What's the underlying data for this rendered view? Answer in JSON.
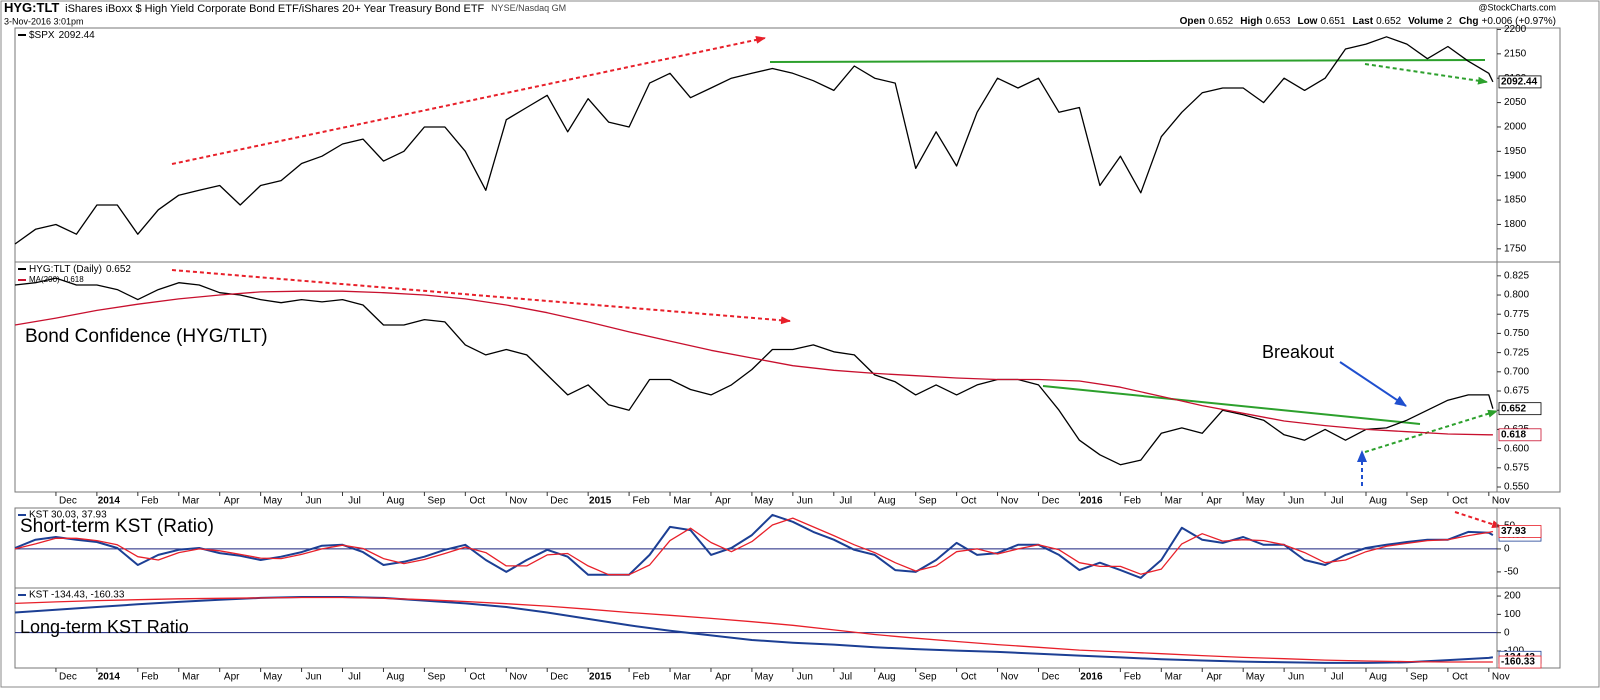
{
  "header": {
    "symbol": "HYG:TLT",
    "description": "iShares iBoxx $ High Yield Corporate Bond ETF/iShares 20+ Year Treasury Bond ETF",
    "exchange": "NYSE/Nasdaq GM",
    "date": "3-Nov-2016 3:01pm",
    "watermark": "@StockCharts.com",
    "stats": [
      {
        "label": "Open",
        "value": "0.652"
      },
      {
        "label": "High",
        "value": "0.653"
      },
      {
        "label": "Low",
        "value": "0.651"
      },
      {
        "label": "Last",
        "value": "0.652"
      },
      {
        "label": "Volume",
        "value": "2"
      },
      {
        "label": "Chg",
        "value": "+0.006 (+0.97%)"
      }
    ]
  },
  "chart_data": [
    {
      "type": "line",
      "x": [
        0,
        0.5,
        1,
        1.5,
        2,
        2.5,
        3,
        3.5,
        4,
        4.5,
        5,
        5.5,
        6,
        6.5,
        7,
        7.5,
        8,
        8.5,
        9,
        9.5,
        10,
        10.5,
        11,
        11.5,
        12,
        12.5,
        13,
        13.5,
        14,
        14.5,
        15,
        15.5,
        16,
        16.5,
        17,
        17.5,
        18,
        18.5,
        19,
        19.5,
        20,
        20.5,
        21,
        21.5,
        22,
        22.5,
        23,
        23.5,
        24,
        24.5,
        25,
        25.5,
        26,
        26.5,
        27,
        27.5,
        28,
        28.5,
        29,
        29.5,
        30,
        30.5,
        31,
        31.5,
        32,
        32.5,
        33,
        33.5,
        34,
        34.5,
        35,
        35.5,
        36,
        36.1
      ],
      "series": [
        {
          "name": "$SPX",
          "color": "#000000",
          "values": [
            1760,
            1790,
            1800,
            1780,
            1840,
            1840,
            1780,
            1830,
            1860,
            1870,
            1880,
            1840,
            1880,
            1890,
            1925,
            1940,
            1965,
            1975,
            1930,
            1950,
            2000,
            2000,
            1950,
            1870,
            2015,
            2040,
            2065,
            1990,
            2058,
            2010,
            2000,
            2090,
            2110,
            2060,
            2080,
            2100,
            2110,
            2120,
            2110,
            2095,
            2075,
            2125,
            2100,
            2090,
            1915,
            1990,
            1920,
            2030,
            2100,
            2080,
            2100,
            2030,
            2040,
            1880,
            1940,
            1865,
            1980,
            2030,
            2070,
            2080,
            2080,
            2050,
            2100,
            2075,
            2100,
            2160,
            2170,
            2185,
            2170,
            2140,
            2165,
            2135,
            2110,
            2092.44
          ]
        }
      ],
      "xlim": [
        0,
        36.2
      ],
      "ylim": [
        1723,
        2203
      ],
      "yticks": [
        1750,
        1800,
        1850,
        1900,
        1950,
        2000,
        2050,
        2100,
        2150,
        2200
      ],
      "grid": false
    },
    {
      "type": "line",
      "x": [
        0,
        0.5,
        1,
        1.5,
        2,
        2.5,
        3,
        3.5,
        4,
        4.5,
        5,
        5.5,
        6,
        6.5,
        7,
        7.5,
        8,
        8.5,
        9,
        9.5,
        10,
        10.5,
        11,
        11.5,
        12,
        12.5,
        13,
        13.5,
        14,
        14.5,
        15,
        15.5,
        16,
        16.5,
        17,
        17.5,
        18,
        18.5,
        19,
        19.5,
        20,
        20.5,
        21,
        21.5,
        22,
        22.5,
        23,
        23.5,
        24,
        24.5,
        25,
        25.5,
        26,
        26.5,
        27,
        27.5,
        28,
        28.5,
        29,
        29.5,
        30,
        30.5,
        31,
        31.5,
        32,
        32.5,
        33,
        33.5,
        34,
        34.5,
        35,
        35.5,
        36,
        36.1
      ],
      "series": [
        {
          "name": "HYG:TLT (Daily)",
          "color": "#000000",
          "values": [
            0.813,
            0.816,
            0.822,
            0.813,
            0.813,
            0.807,
            0.794,
            0.807,
            0.816,
            0.813,
            0.803,
            0.8,
            0.794,
            0.79,
            0.794,
            0.791,
            0.794,
            0.787,
            0.761,
            0.761,
            0.768,
            0.765,
            0.735,
            0.722,
            0.729,
            0.722,
            0.696,
            0.67,
            0.683,
            0.657,
            0.65,
            0.69,
            0.69,
            0.677,
            0.67,
            0.683,
            0.703,
            0.729,
            0.729,
            0.735,
            0.726,
            0.722,
            0.696,
            0.687,
            0.67,
            0.683,
            0.67,
            0.683,
            0.69,
            0.69,
            0.683,
            0.65,
            0.611,
            0.592,
            0.579,
            0.585,
            0.62,
            0.627,
            0.62,
            0.65,
            0.644,
            0.637,
            0.618,
            0.611,
            0.625,
            0.611,
            0.625,
            0.627,
            0.637,
            0.65,
            0.663,
            0.67,
            0.67,
            0.652
          ]
        },
        {
          "name": "MA(200)",
          "color": "#c8102e",
          "x": [
            0,
            1,
            2,
            3,
            4,
            5,
            6,
            7,
            8,
            9,
            10,
            11,
            12,
            13,
            14,
            15,
            16,
            17,
            18,
            19,
            20,
            21,
            22,
            23,
            24,
            25,
            26,
            27,
            28,
            29,
            30,
            31,
            32,
            33,
            34,
            35,
            36,
            36.1
          ],
          "values": [
            0.761,
            0.77,
            0.78,
            0.788,
            0.795,
            0.8,
            0.804,
            0.805,
            0.805,
            0.803,
            0.8,
            0.795,
            0.787,
            0.777,
            0.765,
            0.752,
            0.74,
            0.728,
            0.718,
            0.708,
            0.702,
            0.698,
            0.695,
            0.692,
            0.69,
            0.69,
            0.688,
            0.68,
            0.668,
            0.656,
            0.646,
            0.636,
            0.63,
            0.625,
            0.622,
            0.619,
            0.618,
            0.618
          ]
        }
      ],
      "xlim": [
        0,
        36.2
      ],
      "ylim": [
        0.5435,
        0.843
      ],
      "yticks": [
        {
          "value": 0.55,
          "label": "0.550"
        },
        0.575,
        {
          "value": 0.6,
          "label": "0.600"
        },
        0.625,
        {
          "value": 0.65,
          "label": "0.650"
        },
        0.675,
        {
          "value": 0.7,
          "label": "0.700"
        },
        0.725,
        {
          "value": 0.75,
          "label": "0.750"
        },
        0.775,
        {
          "value": 0.8,
          "label": "0.800"
        },
        0.825
      ],
      "xticks": [
        {
          "value": 1,
          "label": "Dec"
        },
        {
          "value": 2,
          "label": "2014"
        },
        {
          "value": 3,
          "label": "Feb"
        },
        {
          "value": 4,
          "label": "Mar"
        },
        {
          "value": 5,
          "label": "Apr"
        },
        {
          "value": 6,
          "label": "May"
        },
        {
          "value": 7,
          "label": "Jun"
        },
        {
          "value": 8,
          "label": "Jul"
        },
        {
          "value": 9,
          "label": "Aug"
        },
        {
          "value": 10,
          "label": "Sep"
        },
        {
          "value": 11,
          "label": "Oct"
        },
        {
          "value": 12,
          "label": "Nov"
        },
        {
          "value": 13,
          "label": "Dec"
        },
        {
          "value": 14,
          "label": "2015"
        },
        {
          "value": 15,
          "label": "Feb"
        },
        {
          "value": 16,
          "label": "Mar"
        },
        {
          "value": 17,
          "label": "Apr"
        },
        {
          "value": 18,
          "label": "May"
        },
        {
          "value": 19,
          "label": "Jun"
        },
        {
          "value": 20,
          "label": "Jul"
        },
        {
          "value": 21,
          "label": "Aug"
        },
        {
          "value": 22,
          "label": "Sep"
        },
        {
          "value": 23,
          "label": "Oct"
        },
        {
          "value": 24,
          "label": "Nov"
        },
        {
          "value": 25,
          "label": "Dec"
        },
        {
          "value": 26,
          "label": "2016"
        },
        {
          "value": 27,
          "label": "Feb"
        },
        {
          "value": 28,
          "label": "Mar"
        },
        {
          "value": 29,
          "label": "Apr"
        },
        {
          "value": 30,
          "label": "May"
        },
        {
          "value": 31,
          "label": "Jun"
        },
        {
          "value": 32,
          "label": "Jul"
        },
        {
          "value": 33,
          "label": "Aug"
        },
        {
          "value": 34,
          "label": "Sep"
        },
        {
          "value": 35,
          "label": "Oct"
        },
        {
          "value": 36,
          "label": "Nov"
        }
      ],
      "grid": false,
      "annotations": [
        "Bond Confidence (HYG/TLT)",
        "Breakout"
      ]
    },
    {
      "type": "line",
      "legend": "KST 30.03, 37.93",
      "x": [
        0,
        0.5,
        1,
        1.5,
        2,
        2.5,
        3,
        3.5,
        4,
        4.5,
        5,
        5.5,
        6,
        6.5,
        7,
        7.5,
        8,
        8.5,
        9,
        9.5,
        10,
        10.5,
        11,
        11.5,
        12,
        12.5,
        13,
        13.5,
        14,
        14.5,
        15,
        15.5,
        16,
        16.5,
        17,
        17.5,
        18,
        18.5,
        19,
        19.5,
        20,
        20.5,
        21,
        21.5,
        22,
        22.5,
        23,
        23.5,
        24,
        24.5,
        25,
        25.5,
        26,
        26.5,
        27,
        27.5,
        28,
        28.5,
        29,
        29.5,
        30,
        30.5,
        31,
        31.5,
        32,
        32.5,
        33,
        33.5,
        34,
        34.5,
        35,
        35.5,
        36,
        36.1
      ],
      "series": [
        {
          "color": "#1c3f94",
          "values": [
            2,
            20,
            26,
            20,
            15,
            2,
            -35,
            -13,
            -2,
            2,
            -9,
            -15,
            -24,
            -17,
            -7,
            7,
            9,
            -7,
            -35,
            -28,
            -17,
            -2,
            9,
            -24,
            -50,
            -24,
            -2,
            -17,
            -56,
            -56,
            -56,
            -13,
            48,
            41,
            -13,
            2,
            30,
            74,
            59,
            37,
            20,
            -2,
            -13,
            -46,
            -50,
            -24,
            13,
            -13,
            -9,
            9,
            9,
            -13,
            -46,
            -30,
            -46,
            -63,
            -24,
            46,
            20,
            13,
            26,
            9,
            9,
            -24,
            -35,
            -13,
            2,
            9,
            15,
            20,
            20,
            37,
            35,
            30.03
          ]
        },
        {
          "color": "#e8202a",
          "values": [
            0,
            11,
            23,
            23,
            18,
            9,
            -17,
            -24,
            -8,
            0,
            -4,
            -12,
            -20,
            -21,
            -12,
            0,
            8,
            1,
            -21,
            -32,
            -23,
            -10,
            4,
            -8,
            -37,
            -37,
            -13,
            -10,
            -37,
            -56,
            -56,
            -35,
            18,
            45,
            14,
            -6,
            16,
            52,
            67,
            48,
            29,
            9,
            -8,
            -30,
            -48,
            -37,
            -6,
            0,
            -11,
            0,
            9,
            -2,
            -30,
            -38,
            -38,
            -55,
            -44,
            11,
            33,
            17,
            20,
            18,
            9,
            -8,
            -30,
            -24,
            -6,
            6,
            12,
            18,
            20,
            29,
            36,
            37.93
          ]
        }
      ],
      "xlim": [
        0,
        36.2
      ],
      "ylim": [
        -85,
        89
      ],
      "yticks": [
        -50,
        0,
        50
      ],
      "hlines": [
        0
      ],
      "grid": false,
      "annotations": [
        "Short-term KST (Ratio)"
      ]
    },
    {
      "type": "line",
      "legend": "KST -134.43, -160.33",
      "x": [
        0,
        1,
        2,
        3,
        4,
        5,
        6,
        7,
        8,
        9,
        10,
        11,
        12,
        13,
        14,
        15,
        16,
        17,
        18,
        19,
        20,
        21,
        22,
        23,
        24,
        25,
        26,
        27,
        28,
        29,
        30,
        31,
        32,
        33,
        34,
        35,
        36,
        36.1
      ],
      "series": [
        {
          "color": "#1c3f94",
          "values": [
            110,
            125,
            140,
            155,
            168,
            180,
            190,
            195,
            195,
            190,
            175,
            160,
            140,
            110,
            75,
            40,
            10,
            -15,
            -40,
            -55,
            -65,
            -80,
            -90,
            -98,
            -105,
            -115,
            -125,
            -135,
            -145,
            -152,
            -158,
            -162,
            -165,
            -165,
            -162,
            -150,
            -138,
            -134.43
          ]
        },
        {
          "color": "#e8202a",
          "values": [
            160,
            168,
            175,
            180,
            185,
            188,
            190,
            192,
            192,
            188,
            180,
            170,
            158,
            145,
            128,
            110,
            95,
            78,
            60,
            40,
            15,
            -10,
            -30,
            -48,
            -65,
            -80,
            -95,
            -105,
            -115,
            -125,
            -135,
            -142,
            -150,
            -155,
            -158,
            -160,
            -160,
            -160.33
          ]
        }
      ],
      "xlim": [
        0,
        36.2
      ],
      "ylim": [
        -193,
        244
      ],
      "yticks": [
        -100,
        0,
        100,
        200
      ],
      "hlines": [
        0
      ],
      "grid": false,
      "xticks": [
        {
          "value": 1,
          "label": "Dec"
        },
        {
          "value": 2,
          "label": "2014"
        },
        {
          "value": 3,
          "label": "Feb"
        },
        {
          "value": 4,
          "label": "Mar"
        },
        {
          "value": 5,
          "label": "Apr"
        },
        {
          "value": 6,
          "label": "May"
        },
        {
          "value": 7,
          "label": "Jun"
        },
        {
          "value": 8,
          "label": "Jul"
        },
        {
          "value": 9,
          "label": "Aug"
        },
        {
          "value": 10,
          "label": "Sep"
        },
        {
          "value": 11,
          "label": "Oct"
        },
        {
          "value": 12,
          "label": "Nov"
        },
        {
          "value": 13,
          "label": "Dec"
        },
        {
          "value": 14,
          "label": "2015"
        },
        {
          "value": 15,
          "label": "Feb"
        },
        {
          "value": 16,
          "label": "Mar"
        },
        {
          "value": 17,
          "label": "Apr"
        },
        {
          "value": 18,
          "label": "May"
        },
        {
          "value": 19,
          "label": "Jun"
        },
        {
          "value": 20,
          "label": "Jul"
        },
        {
          "value": 21,
          "label": "Aug"
        },
        {
          "value": 22,
          "label": "Sep"
        },
        {
          "value": 23,
          "label": "Oct"
        },
        {
          "value": 24,
          "label": "Nov"
        },
        {
          "value": 25,
          "label": "Dec"
        },
        {
          "value": 26,
          "label": "2016"
        },
        {
          "value": 27,
          "label": "Feb"
        },
        {
          "value": 28,
          "label": "Mar"
        },
        {
          "value": 29,
          "label": "Apr"
        },
        {
          "value": 30,
          "label": "May"
        },
        {
          "value": 31,
          "label": "Jun"
        },
        {
          "value": 32,
          "label": "Jul"
        },
        {
          "value": 33,
          "label": "Aug"
        },
        {
          "value": 34,
          "label": "Sep"
        },
        {
          "value": 35,
          "label": "Oct"
        },
        {
          "value": 36,
          "label": "Nov"
        }
      ],
      "annotations": [
        "Long-term KST Ratio"
      ]
    }
  ]
}
